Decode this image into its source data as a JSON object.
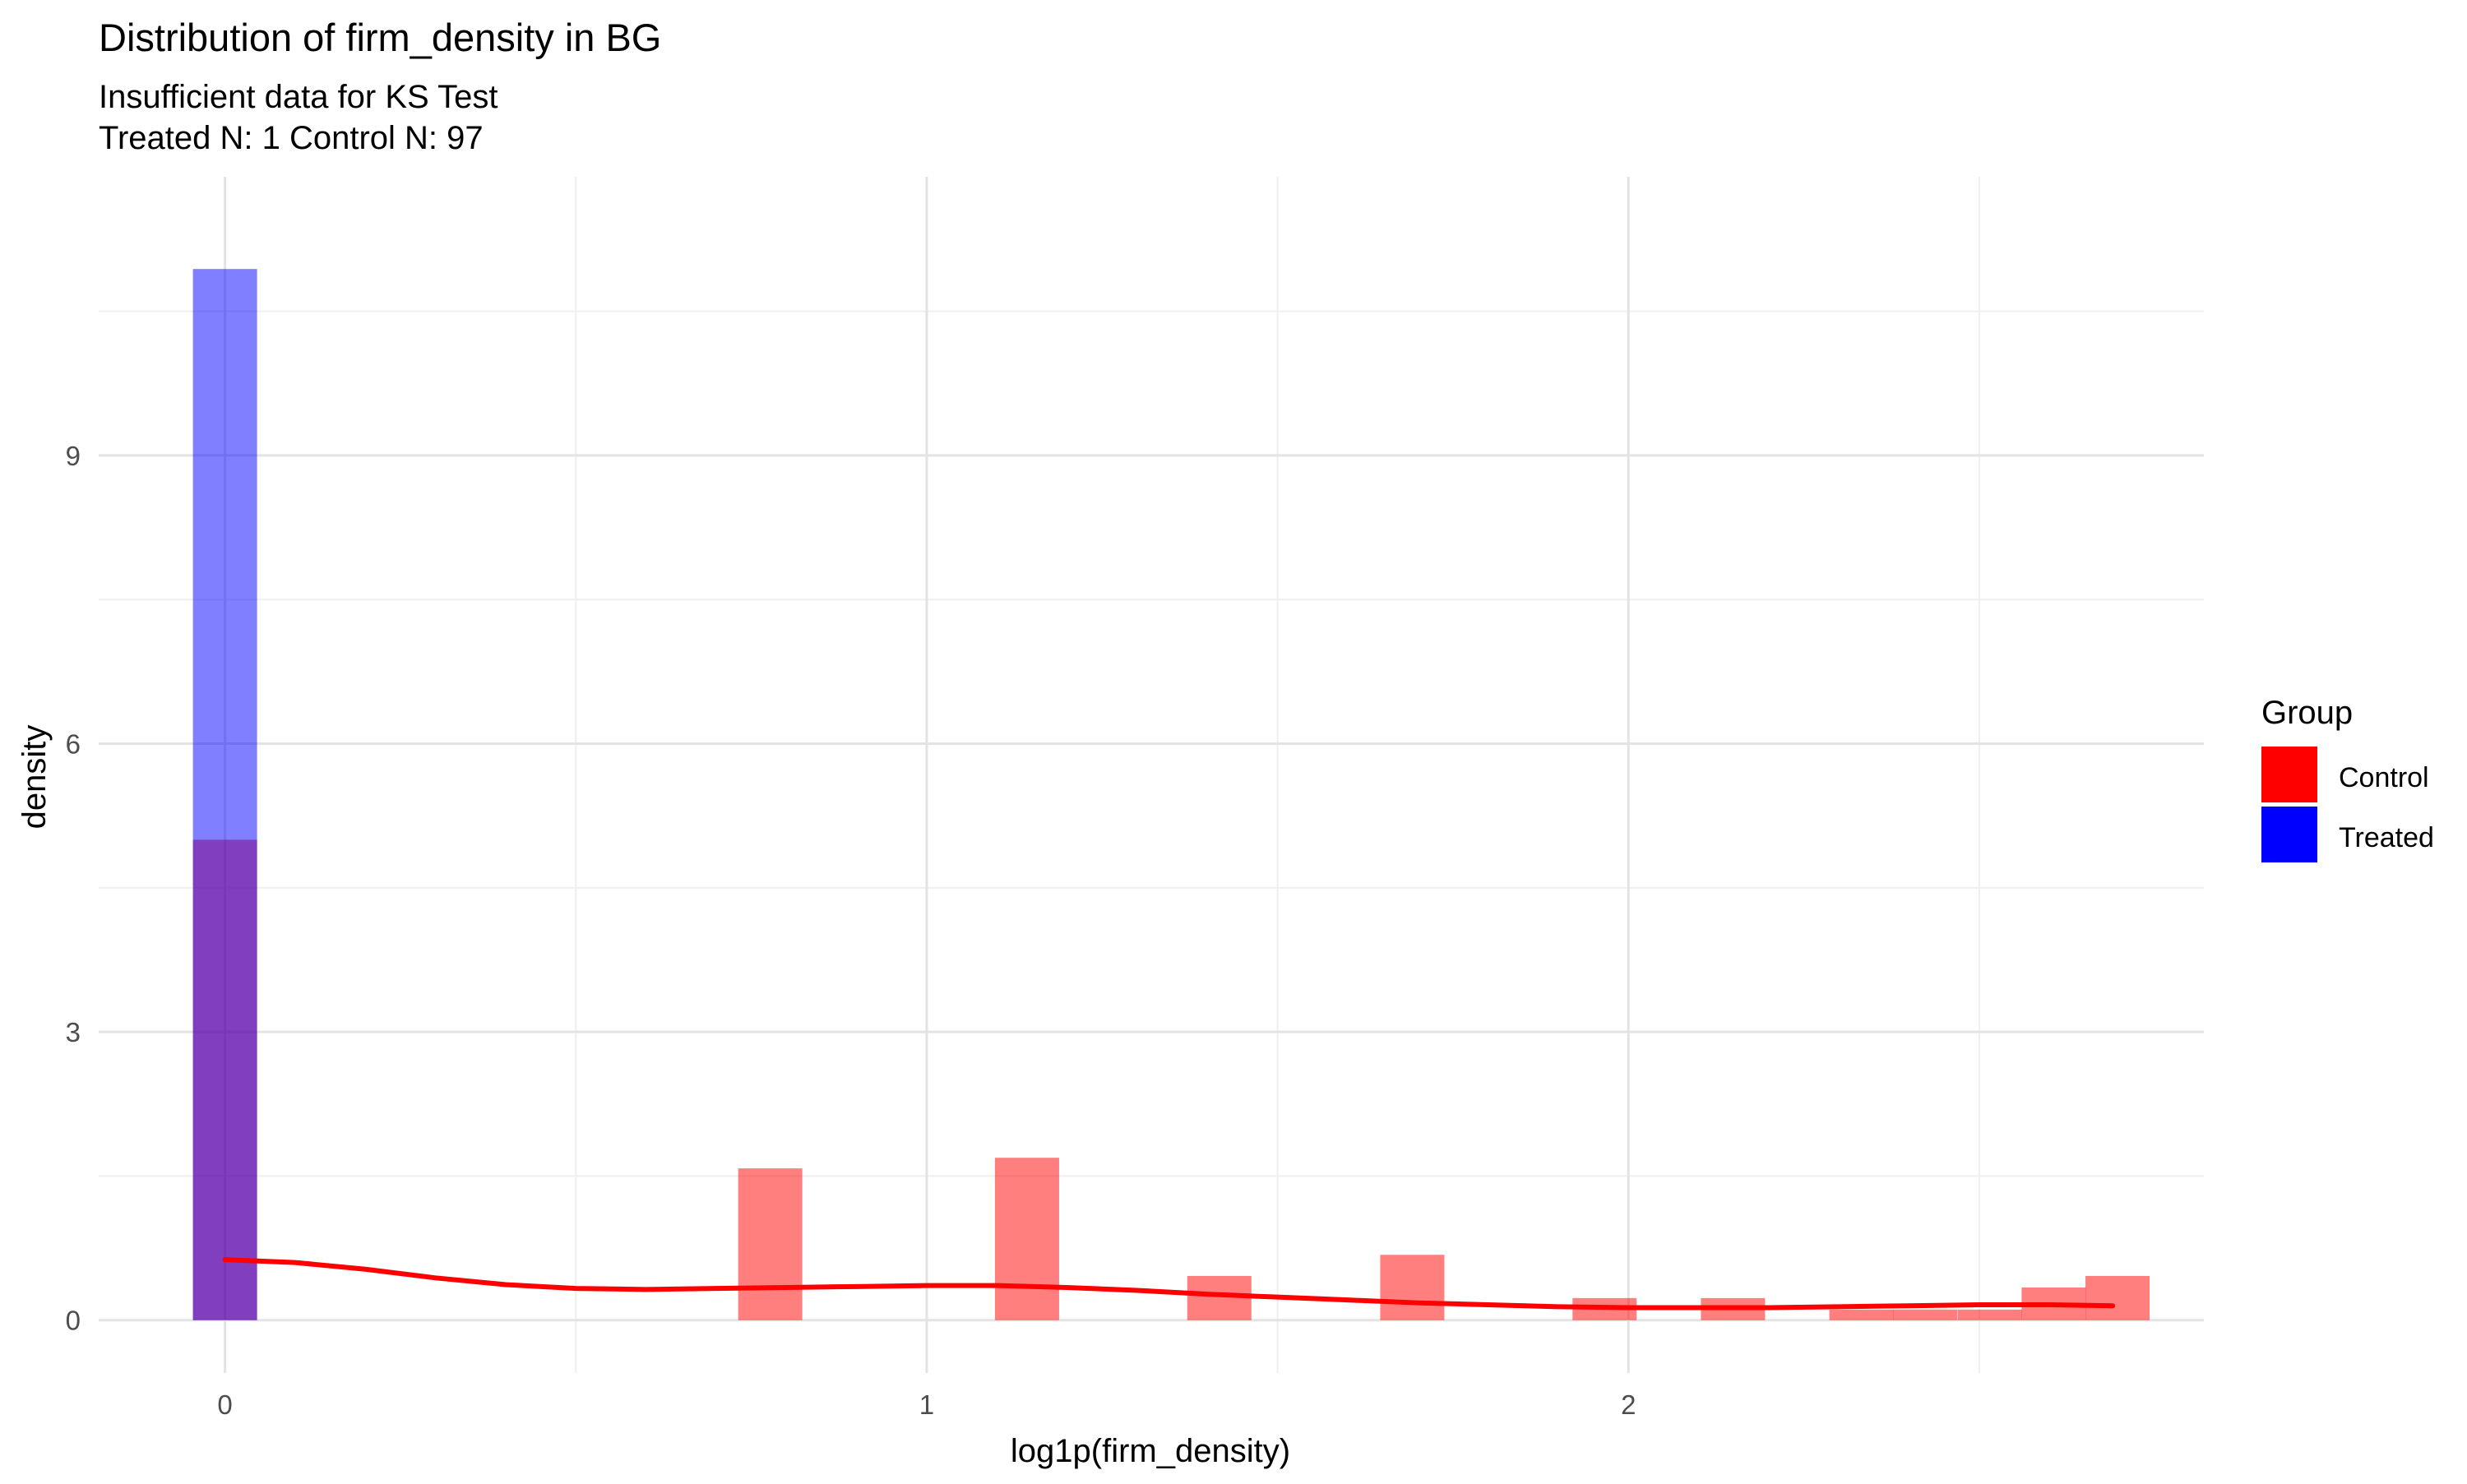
{
  "chart_data": {
    "type": "histogram",
    "title": "Distribution of firm_density in BG",
    "subtitle_lines": [
      "Insufficient data for KS Test",
      "Treated N: 1 Control N: 97"
    ],
    "xlabel": "log1p(firm_density)",
    "ylabel": "density",
    "xlim": [
      -0.18,
      2.82
    ],
    "ylim": [
      -0.55,
      11.9
    ],
    "x_ticks": [
      0,
      1,
      2
    ],
    "x_tick_labels": [
      "0",
      "1",
      "2"
    ],
    "y_ticks": [
      0,
      3,
      6,
      9
    ],
    "y_tick_labels": [
      "0",
      "3",
      "6",
      "9"
    ],
    "x_minor_gridlines": [
      0.5,
      1.5,
      2.5
    ],
    "y_minor_gridlines": [
      1.5,
      4.5,
      7.5,
      10.5
    ],
    "grid": true,
    "bin_width": 0.0914,
    "legend": {
      "title": "Group",
      "position": "right",
      "entries": [
        {
          "label": "Control",
          "color": "#ff0000"
        },
        {
          "label": "Treated",
          "color": "#0000ff"
        }
      ]
    },
    "series": [
      {
        "name": "Control",
        "color": "#ff0000",
        "fill_opacity": 0.5,
        "bins": [
          {
            "x": 0.0,
            "density": 5.0
          },
          {
            "x": 0.777,
            "density": 1.58
          },
          {
            "x": 1.143,
            "density": 1.69
          },
          {
            "x": 1.417,
            "density": 0.46
          },
          {
            "x": 1.692,
            "density": 0.68
          },
          {
            "x": 1.966,
            "density": 0.23
          },
          {
            "x": 2.149,
            "density": 0.23
          },
          {
            "x": 2.332,
            "density": 0.11
          },
          {
            "x": 2.423,
            "density": 0.11
          },
          {
            "x": 2.515,
            "density": 0.11
          },
          {
            "x": 2.606,
            "density": 0.34
          },
          {
            "x": 2.697,
            "density": 0.46
          }
        ]
      },
      {
        "name": "Treated",
        "color": "#0000ff",
        "fill_opacity": 0.5,
        "bins": [
          {
            "x": 0.0,
            "density": 10.94
          }
        ]
      }
    ],
    "density_curve": {
      "series": "Control",
      "color": "#ff0000",
      "x": [
        0.0,
        0.1,
        0.2,
        0.3,
        0.4,
        0.5,
        0.6,
        0.7,
        0.8,
        0.9,
        1.0,
        1.1,
        1.2,
        1.3,
        1.4,
        1.5,
        1.6,
        1.7,
        1.8,
        1.9,
        2.0,
        2.1,
        2.2,
        2.3,
        2.4,
        2.5,
        2.6,
        2.69
      ],
      "y": [
        0.63,
        0.6,
        0.53,
        0.44,
        0.37,
        0.33,
        0.32,
        0.33,
        0.34,
        0.35,
        0.36,
        0.36,
        0.34,
        0.31,
        0.27,
        0.24,
        0.21,
        0.18,
        0.16,
        0.14,
        0.13,
        0.13,
        0.13,
        0.14,
        0.15,
        0.16,
        0.16,
        0.15
      ]
    }
  }
}
